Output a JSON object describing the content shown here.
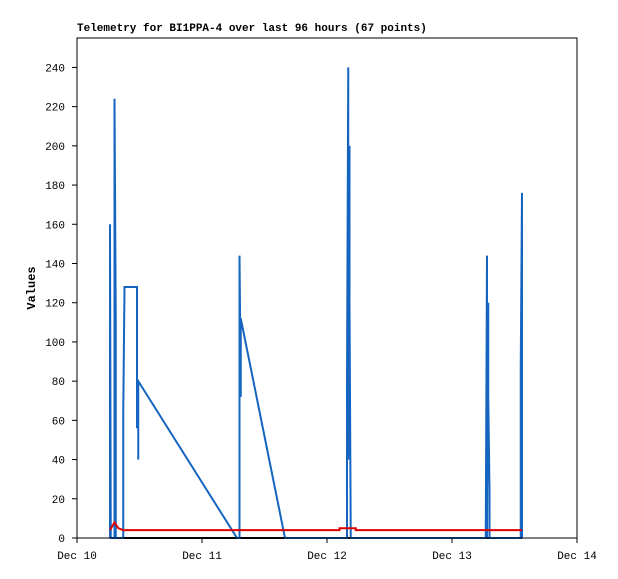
{
  "chart_data": {
    "type": "line",
    "title": "Telemetry for BI1PPA-4 over last 96 hours (67 points)",
    "y_label": "Values",
    "xlim": [
      0,
      4
    ],
    "xticks": [
      {
        "value": 0,
        "label": "Dec 10"
      },
      {
        "value": 1,
        "label": "Dec 11"
      },
      {
        "value": 2,
        "label": "Dec 12"
      },
      {
        "value": 3,
        "label": "Dec 13"
      },
      {
        "value": 4,
        "label": "Dec 14"
      }
    ],
    "ylim": [
      0,
      255
    ],
    "yticks": [
      0,
      20,
      40,
      60,
      80,
      100,
      120,
      140,
      160,
      180,
      200,
      220,
      240
    ],
    "grid": false,
    "series": [
      {
        "color": "#000000",
        "x": [
          0.264,
          3.56
        ],
        "values": [
          0,
          0
        ]
      },
      {
        "color": "#1565c0",
        "x": [
          0.264,
          0.264,
          0.27,
          0.3,
          0.3,
          0.31,
          0.31,
          0.37,
          0.37,
          0.38,
          0.48,
          0.48,
          0.49,
          0.49,
          0.49,
          1.28,
          1.3,
          1.3,
          1.31,
          1.31,
          1.664,
          2.16,
          2.16,
          2.17,
          2.17,
          2.18,
          2.18,
          2.19,
          3.27,
          3.28,
          3.28,
          3.29,
          3.29,
          3.3,
          3.3,
          3.55,
          3.55,
          3.56,
          3.56
        ],
        "values": [
          0,
          160,
          0,
          0,
          224,
          112,
          0,
          0,
          64,
          128,
          128,
          56,
          80,
          40,
          80,
          0,
          0,
          144,
          72,
          112,
          0,
          0,
          80,
          240,
          40,
          200,
          120,
          0,
          0,
          144,
          0,
          120,
          72,
          24,
          0,
          0,
          88,
          176,
          0
        ]
      },
      {
        "color": "#dd0000",
        "x": [
          0.264,
          0.3,
          0.33,
          0.37,
          2.1,
          2.1,
          2.23,
          2.23,
          3.56
        ],
        "values": [
          4,
          8,
          5,
          4,
          4,
          5,
          5,
          4,
          4
        ]
      }
    ]
  }
}
